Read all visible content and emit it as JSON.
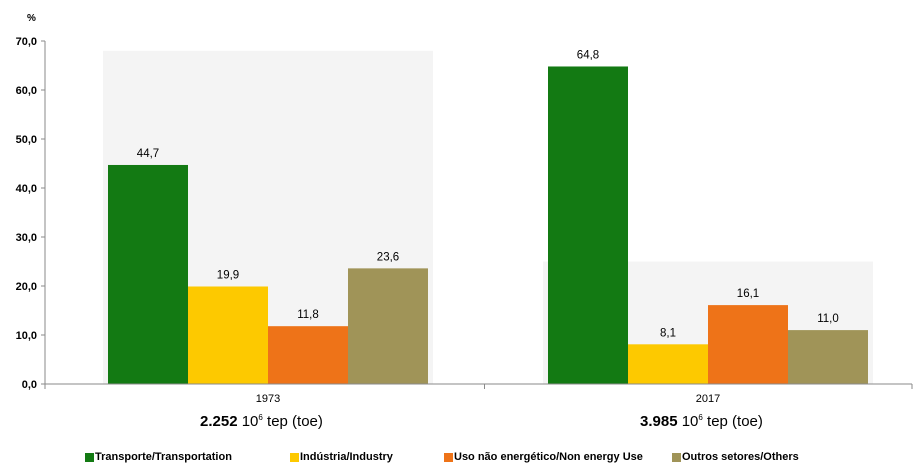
{
  "colors": {
    "transport": "#137a13",
    "industry": "#fdc900",
    "non_energy": "#ee7318",
    "others": "#a09458",
    "plot_bg": "#f4f4f4"
  },
  "chart_data": {
    "type": "bar",
    "ylabel": "%",
    "ylim": [
      0,
      70
    ],
    "yticks": [
      "0,0",
      "10,0",
      "20,0",
      "30,0",
      "40,0",
      "50,0",
      "60,0",
      "70,0"
    ],
    "categories": [
      "1973",
      "2017"
    ],
    "series": [
      {
        "name": "Transporte/Transportation",
        "values": [
          44.7,
          64.8
        ],
        "labels": [
          "44,7",
          "64,8"
        ],
        "color": "#137a13"
      },
      {
        "name": "Indústria/Industry",
        "values": [
          19.9,
          8.1
        ],
        "labels": [
          "19,9",
          "8,1"
        ],
        "color": "#fdc900"
      },
      {
        "name": "Uso não energético/Non energy Use",
        "values": [
          11.8,
          16.1
        ],
        "labels": [
          "11,8",
          "16,1"
        ],
        "color": "#ee7318"
      },
      {
        "name": "Outros setores/Others",
        "values": [
          23.6,
          11.0
        ],
        "labels": [
          "23,6",
          "11,0"
        ],
        "color": "#a09458"
      }
    ],
    "grid": false,
    "legend_position": "bottom"
  },
  "totals": [
    {
      "value": "2.252",
      "unit_base": "10",
      "unit_exp": "6",
      "unit_rest": "tep (toe)"
    },
    {
      "value": "3.985",
      "unit_base": "10",
      "unit_exp": "6",
      "unit_rest": "tep (toe)"
    }
  ]
}
